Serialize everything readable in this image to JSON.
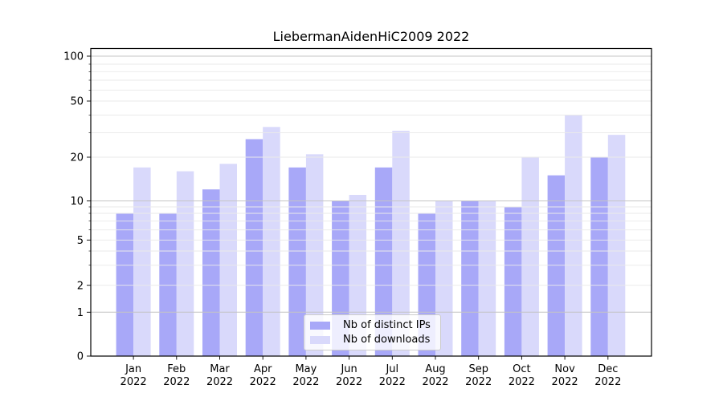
{
  "chart_data": {
    "type": "bar",
    "title": "LiebermanAidenHiC2009 2022",
    "categories": [
      "Jan",
      "Feb",
      "Mar",
      "Apr",
      "May",
      "Jun",
      "Jul",
      "Aug",
      "Sep",
      "Oct",
      "Nov",
      "Dec"
    ],
    "category_sublabel": "2022",
    "series": [
      {
        "name": "Nb of distinct IPs",
        "color": "#a8a8f8",
        "values": [
          8,
          8,
          12,
          27,
          17,
          10,
          17,
          8,
          10,
          9,
          15,
          20
        ]
      },
      {
        "name": "Nb of downloads",
        "color": "#d9d9fb",
        "values": [
          17,
          16,
          18,
          33,
          21,
          11,
          31,
          10,
          10,
          20,
          40,
          29
        ]
      }
    ],
    "xlabel": "",
    "ylabel": "",
    "ylim": [
      0,
      100
    ],
    "yscale": "symlog",
    "grid": true,
    "grid_on_top_of_bars": true,
    "legend_position": "lower center",
    "y_tick_values": [
      0,
      1,
      2,
      5,
      10,
      20,
      50,
      100
    ],
    "y_tick_labels": [
      "0",
      "1",
      "2",
      "5",
      "10",
      "20",
      "50",
      "100"
    ],
    "y_minor_gridline_values": [
      3,
      4,
      6,
      7,
      8,
      9,
      30,
      40,
      60,
      70,
      80,
      90
    ],
    "y_major_gridline_values": [
      1,
      10,
      100
    ],
    "y_scale_anchors": [
      [
        0,
        444
      ],
      [
        1,
        389.3
      ],
      [
        2,
        355.7
      ],
      [
        3,
        330.7
      ],
      [
        4,
        313.0
      ],
      [
        5,
        299.3
      ],
      [
        6,
        286.7
      ],
      [
        7,
        275.7
      ],
      [
        8,
        266.0
      ],
      [
        9,
        258.0
      ],
      [
        10,
        250.5
      ],
      [
        20,
        196.0
      ],
      [
        30,
        165.6
      ],
      [
        40,
        143.5
      ],
      [
        50,
        126.0
      ],
      [
        60,
        112.3
      ],
      [
        70,
        100.0
      ],
      [
        80,
        89.3
      ],
      [
        90,
        80.0
      ],
      [
        100,
        70.0
      ]
    ],
    "colors": {
      "background": "#ffffff",
      "axis": "#000000",
      "text": "#000000",
      "gridline_minor": "#eaeaea",
      "gridline_major": "#c4c4c4",
      "legend_border": "#cccccc"
    }
  }
}
